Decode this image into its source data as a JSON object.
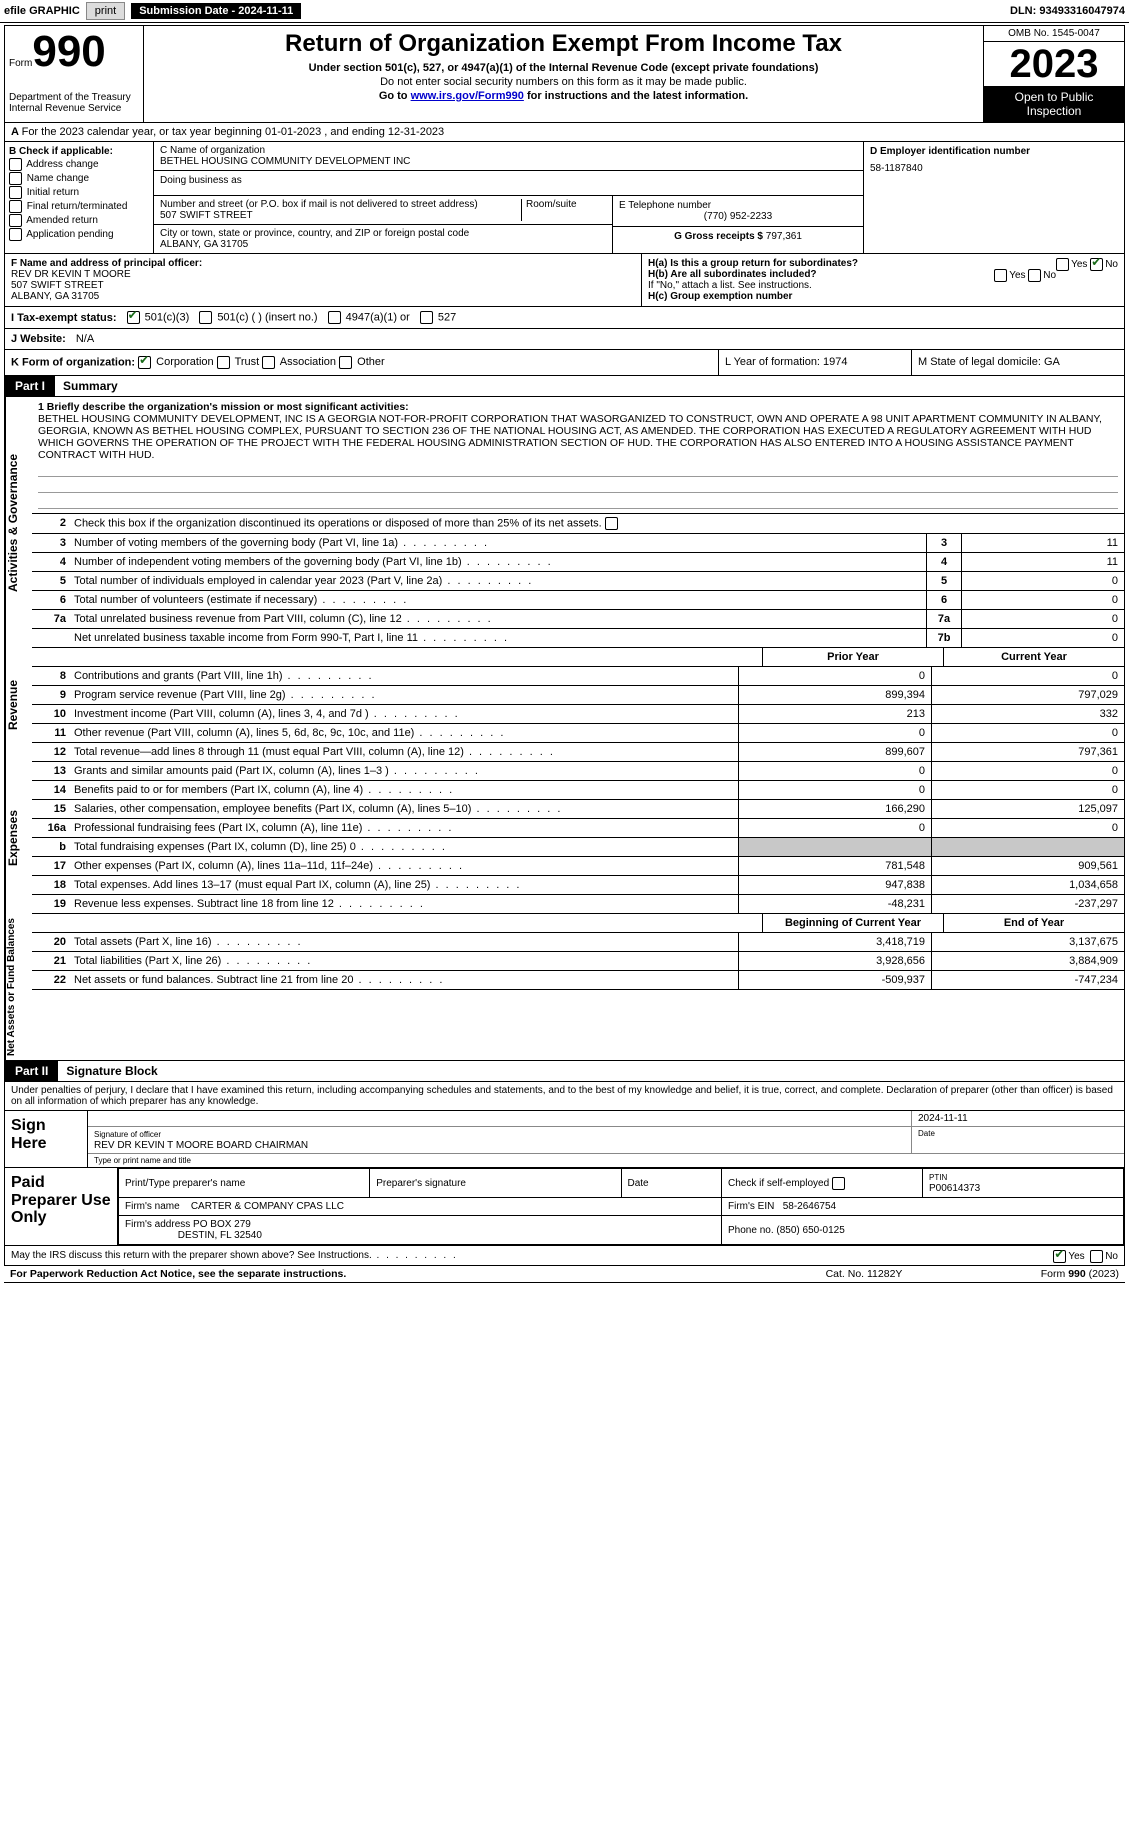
{
  "topbar": {
    "efile": "efile GRAPHIC",
    "print": "print",
    "sub_label": "Submission Date - 2024-11-11",
    "dln_label": "DLN: 93493316047974"
  },
  "header": {
    "form_prefix": "Form",
    "form_number": "990",
    "title": "Return of Organization Exempt From Income Tax",
    "subtitle1": "Under section 501(c), 527, or 4947(a)(1) of the Internal Revenue Code (except private foundations)",
    "subtitle2": "Do not enter social security numbers on this form as it may be made public.",
    "subtitle3_pre": "Go to ",
    "subtitle3_link": "www.irs.gov/Form990",
    "subtitle3_post": " for instructions and the latest information.",
    "dept": "Department of the Treasury",
    "irs": "Internal Revenue Service",
    "omb": "OMB No. 1545-0047",
    "year": "2023",
    "open": "Open to Public Inspection"
  },
  "sectionA": "For the 2023 calendar year, or tax year beginning 01-01-2023   , and ending 12-31-2023",
  "boxB": {
    "label": "B Check if applicable:",
    "opts": [
      "Address change",
      "Name change",
      "Initial return",
      "Final return/terminated",
      "Amended return",
      "Application pending"
    ]
  },
  "boxC": {
    "name_label": "C Name of organization",
    "name": "BETHEL HOUSING COMMUNITY DEVELOPMENT INC",
    "dba_label": "Doing business as",
    "street_label": "Number and street (or P.O. box if mail is not delivered to street address)",
    "street": "507 SWIFT STREET",
    "room_label": "Room/suite",
    "city_label": "City or town, state or province, country, and ZIP or foreign postal code",
    "city": "ALBANY, GA  31705"
  },
  "boxD": {
    "label": "D Employer identification number",
    "value": "58-1187840"
  },
  "boxE": {
    "label": "E Telephone number",
    "value": "(770) 952-2233"
  },
  "boxG": {
    "label": "G Gross receipts $",
    "value": "797,361"
  },
  "boxF": {
    "label": "F  Name and address of principal officer:",
    "name": "REV DR KEVIN T MOORE",
    "street": "507 SWIFT STREET",
    "city": "ALBANY, GA  31705"
  },
  "boxH": {
    "ha": "H(a)  Is this a group return for subordinates?",
    "ha_yes": "Yes",
    "ha_no": "No",
    "hb": "H(b)  Are all subordinates included?",
    "hb_note": "If \"No,\" attach a list. See instructions.",
    "hc": "H(c)  Group exemption number"
  },
  "rowI": {
    "label": "I   Tax-exempt status:",
    "o1": "501(c)(3)",
    "o2": "501(c) (  ) (insert no.)",
    "o3": "4947(a)(1) or",
    "o4": "527"
  },
  "rowJ": {
    "label": "J   Website:",
    "value": "N/A"
  },
  "rowK": {
    "label": "K Form of organization:",
    "corp": "Corporation",
    "trust": "Trust",
    "assoc": "Association",
    "other": "Other",
    "l": "L Year of formation: 1974",
    "m": "M State of legal domicile: GA"
  },
  "partI": {
    "tab": "Part I",
    "title": "Summary"
  },
  "mission": {
    "label": "1   Briefly describe the organization's mission or most significant activities:",
    "text": "BETHEL HOUSING COMMUNITY DEVELOPMENT, INC IS A GEORGIA NOT-FOR-PROFIT CORPORATION THAT WASORGANIZED TO CONSTRUCT, OWN AND OPERATE A 98 UNIT APARTMENT COMMUNITY IN ALBANY, GEORGIA, KNOWN AS BETHEL HOUSING COMPLEX, PURSUANT TO SECTION 236 OF THE NATIONAL HOUSING ACT, AS AMENDED. THE CORPORATION HAS EXECUTED A REGULATORY AGREEMENT WITH HUD WHICH GOVERNS THE OPERATION OF THE PROJECT WITH THE FEDERAL HOUSING ADMINISTRATION SECTION OF HUD. THE CORPORATION HAS ALSO ENTERED INTO A HOUSING ASSISTANCE PAYMENT CONTRACT WITH HUD."
  },
  "line2": "Check this box      if the organization discontinued its operations or disposed of more than 25% of its net assets.",
  "activities_rows": [
    {
      "num": "3",
      "desc": "Number of voting members of the governing body (Part VI, line 1a)",
      "box": "3",
      "val": "11"
    },
    {
      "num": "4",
      "desc": "Number of independent voting members of the governing body (Part VI, line 1b)",
      "box": "4",
      "val": "11"
    },
    {
      "num": "5",
      "desc": "Total number of individuals employed in calendar year 2023 (Part V, line 2a)",
      "box": "5",
      "val": "0"
    },
    {
      "num": "6",
      "desc": "Total number of volunteers (estimate if necessary)",
      "box": "6",
      "val": "0"
    },
    {
      "num": "7a",
      "desc": "Total unrelated business revenue from Part VIII, column (C), line 12",
      "box": "7a",
      "val": "0"
    },
    {
      "num": "",
      "desc": "Net unrelated business taxable income from Form 990-T, Part I, line 11",
      "box": "7b",
      "val": "0"
    }
  ],
  "col_headers_py_cy": {
    "h1": "Prior Year",
    "h2": "Current Year"
  },
  "revenue_rows": [
    {
      "num": "8",
      "desc": "Contributions and grants (Part VIII, line 1h)",
      "v1": "0",
      "v2": "0"
    },
    {
      "num": "9",
      "desc": "Program service revenue (Part VIII, line 2g)",
      "v1": "899,394",
      "v2": "797,029"
    },
    {
      "num": "10",
      "desc": "Investment income (Part VIII, column (A), lines 3, 4, and 7d )",
      "v1": "213",
      "v2": "332"
    },
    {
      "num": "11",
      "desc": "Other revenue (Part VIII, column (A), lines 5, 6d, 8c, 9c, 10c, and 11e)",
      "v1": "0",
      "v2": "0"
    },
    {
      "num": "12",
      "desc": "Total revenue—add lines 8 through 11 (must equal Part VIII, column (A), line 12)",
      "v1": "899,607",
      "v2": "797,361"
    }
  ],
  "expense_rows": [
    {
      "num": "13",
      "desc": "Grants and similar amounts paid (Part IX, column (A), lines 1–3 )",
      "v1": "0",
      "v2": "0"
    },
    {
      "num": "14",
      "desc": "Benefits paid to or for members (Part IX, column (A), line 4)",
      "v1": "0",
      "v2": "0"
    },
    {
      "num": "15",
      "desc": "Salaries, other compensation, employee benefits (Part IX, column (A), lines 5–10)",
      "v1": "166,290",
      "v2": "125,097"
    },
    {
      "num": "16a",
      "desc": "Professional fundraising fees (Part IX, column (A), line 11e)",
      "v1": "0",
      "v2": "0"
    },
    {
      "num": "b",
      "desc": "Total fundraising expenses (Part IX, column (D), line 25) 0",
      "v1": "",
      "v2": "",
      "grey": true
    },
    {
      "num": "17",
      "desc": "Other expenses (Part IX, column (A), lines 11a–11d, 11f–24e)",
      "v1": "781,548",
      "v2": "909,561"
    },
    {
      "num": "18",
      "desc": "Total expenses. Add lines 13–17 (must equal Part IX, column (A), line 25)",
      "v1": "947,838",
      "v2": "1,034,658"
    },
    {
      "num": "19",
      "desc": "Revenue less expenses. Subtract line 18 from line 12",
      "v1": "-48,231",
      "v2": "-237,297"
    }
  ],
  "col_headers_boy_eoy": {
    "h1": "Beginning of Current Year",
    "h2": "End of Year"
  },
  "netassets_rows": [
    {
      "num": "20",
      "desc": "Total assets (Part X, line 16)",
      "v1": "3,418,719",
      "v2": "3,137,675"
    },
    {
      "num": "21",
      "desc": "Total liabilities (Part X, line 26)",
      "v1": "3,928,656",
      "v2": "3,884,909"
    },
    {
      "num": "22",
      "desc": "Net assets or fund balances. Subtract line 21 from line 20",
      "v1": "-509,937",
      "v2": "-747,234"
    }
  ],
  "partII": {
    "tab": "Part II",
    "title": "Signature Block"
  },
  "sig": {
    "decl": "Under penalties of perjury, I declare that I have examined this return, including accompanying schedules and statements, and to the best of my knowledge and belief, it is true, correct, and complete. Declaration of preparer (other than officer) is based on all information of which preparer has any knowledge.",
    "sign_here": "Sign Here",
    "sig_officer_label": "Signature of officer",
    "sig_officer": "REV DR KEVIN T MOORE  BOARD CHAIRMAN",
    "sig_type": "Type or print name and title",
    "date_label": "Date",
    "date": "2024-11-11",
    "paid": "Paid Preparer Use Only",
    "prep_name_label": "Print/Type preparer's name",
    "prep_sig_label": "Preparer's signature",
    "prep_date_label": "Date",
    "self_emp": "Check      if self-employed",
    "ptin_label": "PTIN",
    "ptin": "P00614373",
    "firm_name_label": "Firm's name",
    "firm_name": "CARTER & COMPANY CPAS LLC",
    "firm_ein_label": "Firm's EIN",
    "firm_ein": "58-2646754",
    "firm_addr_label": "Firm's address",
    "firm_addr1": "PO BOX 279",
    "firm_addr2": "DESTIN, FL  32540",
    "phone_label": "Phone no.",
    "phone": "(850) 650-0125",
    "discuss": "May the IRS discuss this return with the preparer shown above? See Instructions.",
    "yes": "Yes",
    "no": "No"
  },
  "footer": {
    "pra": "For Paperwork Reduction Act Notice, see the separate instructions.",
    "cat": "Cat. No. 11282Y",
    "form": "Form 990 (2023)"
  },
  "side_labels": {
    "ag": "Activities & Governance",
    "rev": "Revenue",
    "exp": "Expenses",
    "na": "Net Assets or Fund Balances"
  }
}
